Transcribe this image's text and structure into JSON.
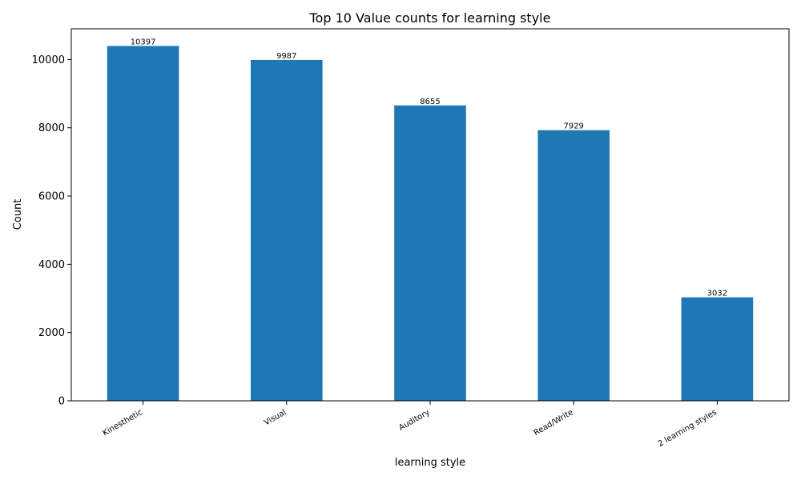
{
  "chart_data": {
    "type": "bar",
    "title": "Top 10 Value counts for learning style",
    "xlabel": "learning style",
    "ylabel": "Count",
    "categories": [
      "Kinesthetic",
      "Visual",
      "Auditory",
      "Read/Write",
      "2 learning styles"
    ],
    "values": [
      10397,
      9987,
      8655,
      7929,
      3032
    ],
    "ylim": [
      0,
      10900
    ],
    "yticks": [
      0,
      2000,
      4000,
      6000,
      8000,
      10000
    ],
    "bar_color": "#1f77b4",
    "grid": false,
    "legend": "none"
  }
}
